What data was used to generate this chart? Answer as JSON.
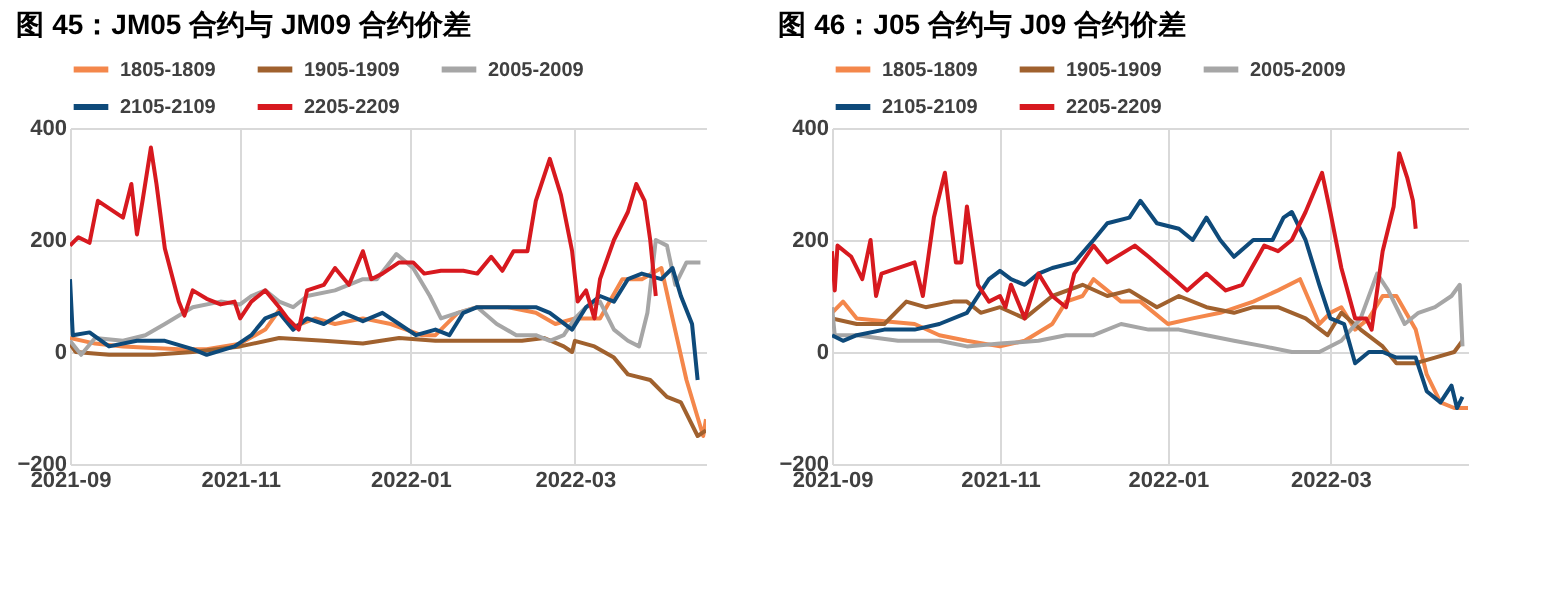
{
  "chart_data": [
    {
      "type": "line",
      "title": "图 45：JM05 合约与 JM09 合约价差",
      "legend": "top",
      "grid": true,
      "xlim": [
        "2021-09-01",
        "2022-04-17"
      ],
      "xticks": [
        "2021-09",
        "2021-11",
        "2022-01",
        "2022-03"
      ],
      "ylim": [
        -200,
        400
      ],
      "yticks": [
        -200,
        0,
        200,
        400
      ],
      "series": [
        {
          "name": "1805-1809",
          "color": "#f4874b",
          "x": [
            "2021-09-01",
            "2021-09-10",
            "2021-09-20",
            "2021-10-10",
            "2021-10-20",
            "2021-11-01",
            "2021-11-10",
            "2021-11-15",
            "2021-11-20",
            "2021-11-28",
            "2021-12-05",
            "2021-12-15",
            "2021-12-25",
            "2022-01-05",
            "2022-01-10",
            "2022-01-18",
            "2022-01-25",
            "2022-02-05",
            "2022-02-15",
            "2022-02-22",
            "2022-03-01",
            "2022-03-10",
            "2022-03-18",
            "2022-03-25",
            "2022-04-01",
            "2022-04-05",
            "2022-04-10",
            "2022-04-16",
            "2022-04-17"
          ],
          "values": [
            25,
            15,
            10,
            5,
            5,
            15,
            40,
            75,
            45,
            60,
            50,
            60,
            50,
            30,
            30,
            70,
            80,
            80,
            70,
            50,
            60,
            60,
            130,
            130,
            150,
            60,
            -50,
            -150,
            -120
          ]
        },
        {
          "name": "1905-1909",
          "color": "#a0612e",
          "x": [
            "2021-09-01",
            "2021-09-03",
            "2021-09-15",
            "2021-10-01",
            "2021-10-15",
            "2021-11-01",
            "2021-11-15",
            "2021-12-01",
            "2021-12-15",
            "2021-12-28",
            "2022-01-10",
            "2022-01-25",
            "2022-02-10",
            "2022-02-18",
            "2022-02-25",
            "2022-02-28",
            "2022-03-01",
            "2022-03-08",
            "2022-03-15",
            "2022-03-20",
            "2022-03-28",
            "2022-04-03",
            "2022-04-08",
            "2022-04-14",
            "2022-04-17"
          ],
          "values": [
            15,
            0,
            -5,
            -5,
            0,
            10,
            25,
            20,
            15,
            25,
            20,
            20,
            20,
            25,
            10,
            0,
            20,
            10,
            -10,
            -40,
            -50,
            -80,
            -90,
            -150,
            -140
          ]
        },
        {
          "name": "2005-2009",
          "color": "#a6a6a6",
          "x": [
            "2021-09-01",
            "2021-09-05",
            "2021-09-10",
            "2021-09-20",
            "2021-09-28",
            "2021-10-05",
            "2021-10-15",
            "2021-10-25",
            "2021-11-01",
            "2021-11-05",
            "2021-11-10",
            "2021-11-15",
            "2021-11-20",
            "2021-11-25",
            "2021-12-05",
            "2021-12-15",
            "2021-12-20",
            "2021-12-27",
            "2022-01-02",
            "2022-01-08",
            "2022-01-12",
            "2022-01-18",
            "2022-01-25",
            "2022-02-01",
            "2022-02-08",
            "2022-02-15",
            "2022-02-20",
            "2022-02-25",
            "2022-03-01",
            "2022-03-05",
            "2022-03-10",
            "2022-03-15",
            "2022-03-20",
            "2022-03-24",
            "2022-03-27",
            "2022-03-30",
            "2022-04-03",
            "2022-04-06",
            "2022-04-10",
            "2022-04-15"
          ],
          "values": [
            20,
            -5,
            25,
            20,
            30,
            50,
            80,
            90,
            85,
            100,
            110,
            90,
            80,
            100,
            110,
            130,
            130,
            175,
            150,
            100,
            60,
            70,
            80,
            50,
            30,
            30,
            20,
            30,
            60,
            80,
            90,
            40,
            20,
            10,
            70,
            200,
            190,
            120,
            160,
            160
          ]
        },
        {
          "name": "2105-2109",
          "color": "#0e4a7a",
          "x": [
            "2021-09-01",
            "2021-09-02",
            "2021-09-08",
            "2021-09-15",
            "2021-09-25",
            "2021-10-05",
            "2021-10-15",
            "2021-10-20",
            "2021-10-30",
            "2021-11-05",
            "2021-11-10",
            "2021-11-15",
            "2021-11-20",
            "2021-11-25",
            "2021-12-01",
            "2021-12-08",
            "2021-12-15",
            "2021-12-22",
            "2021-12-28",
            "2022-01-03",
            "2022-01-10",
            "2022-01-15",
            "2022-01-20",
            "2022-01-25",
            "2022-02-05",
            "2022-02-15",
            "2022-02-20",
            "2022-02-28",
            "2022-03-05",
            "2022-03-10",
            "2022-03-15",
            "2022-03-20",
            "2022-03-25",
            "2022-04-01",
            "2022-04-05",
            "2022-04-08",
            "2022-04-12",
            "2022-04-14"
          ],
          "values": [
            130,
            30,
            35,
            10,
            20,
            20,
            5,
            -5,
            10,
            30,
            60,
            70,
            40,
            60,
            50,
            70,
            55,
            70,
            50,
            30,
            40,
            30,
            70,
            80,
            80,
            80,
            70,
            40,
            80,
            100,
            90,
            130,
            140,
            130,
            150,
            100,
            50,
            -50
          ]
        },
        {
          "name": "2205-2209",
          "color": "#d7191f",
          "x": [
            "2021-09-01",
            "2021-09-04",
            "2021-09-08",
            "2021-09-11",
            "2021-09-20",
            "2021-09-23",
            "2021-09-25",
            "2021-09-27",
            "2021-09-30",
            "2021-10-02",
            "2021-10-05",
            "2021-10-10",
            "2021-10-12",
            "2021-10-15",
            "2021-10-20",
            "2021-10-25",
            "2021-10-30",
            "2021-11-01",
            "2021-11-05",
            "2021-11-10",
            "2021-11-15",
            "2021-11-18",
            "2021-11-22",
            "2021-11-25",
            "2021-12-01",
            "2021-12-05",
            "2021-12-10",
            "2021-12-15",
            "2021-12-18",
            "2021-12-22",
            "2021-12-28",
            "2022-01-02",
            "2022-01-06",
            "2022-01-12",
            "2022-01-20",
            "2022-01-25",
            "2022-01-30",
            "2022-02-03",
            "2022-02-07",
            "2022-02-12",
            "2022-02-15",
            "2022-02-20",
            "2022-02-24",
            "2022-02-28",
            "2022-03-02",
            "2022-03-05",
            "2022-03-08",
            "2022-03-10",
            "2022-03-15",
            "2022-03-20",
            "2022-03-23",
            "2022-03-26",
            "2022-03-28",
            "2022-03-30"
          ],
          "values": [
            190,
            205,
            195,
            270,
            240,
            300,
            210,
            270,
            365,
            300,
            185,
            90,
            65,
            110,
            95,
            85,
            90,
            60,
            90,
            110,
            80,
            60,
            40,
            110,
            120,
            150,
            120,
            180,
            130,
            140,
            160,
            160,
            140,
            145,
            145,
            140,
            170,
            145,
            180,
            180,
            270,
            345,
            280,
            180,
            90,
            110,
            60,
            130,
            200,
            250,
            300,
            270,
            200,
            100
          ]
        }
      ]
    },
    {
      "type": "line",
      "title": "图 46：J05 合约与 J09 合约价差",
      "legend": "top",
      "grid": true,
      "xlim": [
        "2021-09-01",
        "2022-04-20"
      ],
      "xticks": [
        "2021-09",
        "2021-11",
        "2022-01",
        "2022-03"
      ],
      "ylim": [
        -200,
        400
      ],
      "yticks": [
        -200,
        0,
        200,
        400
      ],
      "series": [
        {
          "name": "1805-1809",
          "color": "#f4874b",
          "x": [
            "2021-09-01",
            "2021-09-05",
            "2021-09-10",
            "2021-09-20",
            "2021-10-01",
            "2021-10-10",
            "2021-10-20",
            "2021-11-01",
            "2021-11-10",
            "2021-11-20",
            "2021-11-25",
            "2021-12-01",
            "2021-12-05",
            "2021-12-15",
            "2021-12-22",
            "2022-01-01",
            "2022-01-10",
            "2022-01-20",
            "2022-02-01",
            "2022-02-10",
            "2022-02-18",
            "2022-02-25",
            "2022-03-01",
            "2022-03-05",
            "2022-03-10",
            "2022-03-15",
            "2022-03-20",
            "2022-03-25",
            "2022-04-01",
            "2022-04-05",
            "2022-04-10",
            "2022-04-15",
            "2022-04-20"
          ],
          "values": [
            70,
            90,
            60,
            55,
            50,
            30,
            20,
            10,
            20,
            50,
            90,
            100,
            130,
            90,
            90,
            50,
            60,
            70,
            90,
            110,
            130,
            50,
            70,
            80,
            40,
            60,
            100,
            100,
            40,
            -40,
            -90,
            -100,
            -100
          ]
        },
        {
          "name": "1905-1909",
          "color": "#a0612e",
          "x": [
            "2021-09-01",
            "2021-09-10",
            "2021-09-20",
            "2021-09-28",
            "2021-10-05",
            "2021-10-15",
            "2021-10-20",
            "2021-10-25",
            "2021-11-01",
            "2021-11-10",
            "2021-11-20",
            "2021-12-01",
            "2021-12-10",
            "2021-12-18",
            "2021-12-28",
            "2022-01-05",
            "2022-01-15",
            "2022-01-25",
            "2022-02-01",
            "2022-02-10",
            "2022-02-20",
            "2022-02-28",
            "2022-03-05",
            "2022-03-12",
            "2022-03-20",
            "2022-03-25",
            "2022-04-01",
            "2022-04-08",
            "2022-04-15",
            "2022-04-18"
          ],
          "values": [
            60,
            50,
            50,
            90,
            80,
            90,
            90,
            70,
            80,
            60,
            100,
            120,
            100,
            110,
            80,
            100,
            80,
            70,
            80,
            80,
            60,
            30,
            70,
            40,
            10,
            -20,
            -20,
            -10,
            0,
            20
          ]
        },
        {
          "name": "2005-2009",
          "color": "#a6a6a6",
          "x": [
            "2021-09-01",
            "2021-09-02",
            "2021-09-10",
            "2021-09-25",
            "2021-10-10",
            "2021-10-20",
            "2021-11-01",
            "2021-11-15",
            "2021-11-25",
            "2021-12-05",
            "2021-12-15",
            "2021-12-25",
            "2022-01-05",
            "2022-01-15",
            "2022-01-25",
            "2022-02-05",
            "2022-02-15",
            "2022-02-25",
            "2022-03-05",
            "2022-03-12",
            "2022-03-18",
            "2022-03-22",
            "2022-03-28",
            "2022-04-02",
            "2022-04-08",
            "2022-04-14",
            "2022-04-17",
            "2022-04-18"
          ],
          "values": [
            80,
            30,
            30,
            20,
            20,
            10,
            15,
            20,
            30,
            30,
            50,
            40,
            40,
            30,
            20,
            10,
            0,
            0,
            20,
            60,
            140,
            110,
            50,
            70,
            80,
            100,
            120,
            10
          ]
        },
        {
          "name": "2105-2109",
          "color": "#0e4a7a",
          "x": [
            "2021-09-01",
            "2021-09-05",
            "2021-09-10",
            "2021-09-20",
            "2021-10-01",
            "2021-10-10",
            "2021-10-20",
            "2021-10-28",
            "2021-11-01",
            "2021-11-05",
            "2021-11-10",
            "2021-11-15",
            "2021-11-20",
            "2021-11-28",
            "2021-12-05",
            "2021-12-10",
            "2021-12-18",
            "2021-12-22",
            "2021-12-28",
            "2022-01-05",
            "2022-01-10",
            "2022-01-15",
            "2022-01-20",
            "2022-01-25",
            "2022-02-01",
            "2022-02-08",
            "2022-02-12",
            "2022-02-15",
            "2022-02-20",
            "2022-02-25",
            "2022-03-01",
            "2022-03-06",
            "2022-03-10",
            "2022-03-15",
            "2022-03-20",
            "2022-03-25",
            "2022-04-01",
            "2022-04-05",
            "2022-04-10",
            "2022-04-14",
            "2022-04-16",
            "2022-04-18"
          ],
          "values": [
            30,
            20,
            30,
            40,
            40,
            50,
            70,
            130,
            145,
            130,
            120,
            140,
            150,
            160,
            200,
            230,
            240,
            270,
            230,
            220,
            200,
            240,
            200,
            170,
            200,
            200,
            240,
            250,
            200,
            120,
            60,
            50,
            -20,
            0,
            0,
            -10,
            -10,
            -70,
            -90,
            -60,
            -100,
            -80
          ]
        },
        {
          "name": "2205-2209",
          "color": "#d7191f",
          "x": [
            "2021-09-01",
            "2021-09-02",
            "2021-09-03",
            "2021-09-08",
            "2021-09-12",
            "2021-09-15",
            "2021-09-17",
            "2021-09-19",
            "2021-10-01",
            "2021-10-04",
            "2021-10-08",
            "2021-10-12",
            "2021-10-16",
            "2021-10-18",
            "2021-10-20",
            "2021-10-24",
            "2021-10-28",
            "2021-11-01",
            "2021-11-03",
            "2021-11-05",
            "2021-11-10",
            "2021-11-15",
            "2021-11-20",
            "2021-11-25",
            "2021-11-28",
            "2021-12-05",
            "2021-12-10",
            "2021-12-20",
            "2021-12-25",
            "2022-01-01",
            "2022-01-08",
            "2022-01-15",
            "2022-01-22",
            "2022-01-28",
            "2022-02-05",
            "2022-02-10",
            "2022-02-15",
            "2022-02-20",
            "2022-02-26",
            "2022-03-01",
            "2022-03-05",
            "2022-03-10",
            "2022-03-14",
            "2022-03-16",
            "2022-03-20",
            "2022-03-24",
            "2022-03-26",
            "2022-03-29",
            "2022-03-31",
            "2022-04-01"
          ],
          "values": [
            180,
            110,
            190,
            170,
            130,
            200,
            100,
            140,
            160,
            100,
            240,
            320,
            160,
            160,
            260,
            120,
            90,
            100,
            80,
            120,
            60,
            140,
            100,
            80,
            140,
            190,
            160,
            190,
            170,
            140,
            110,
            140,
            110,
            120,
            190,
            180,
            200,
            250,
            320,
            250,
            150,
            60,
            60,
            40,
            180,
            260,
            355,
            310,
            270,
            220
          ]
        }
      ]
    }
  ]
}
